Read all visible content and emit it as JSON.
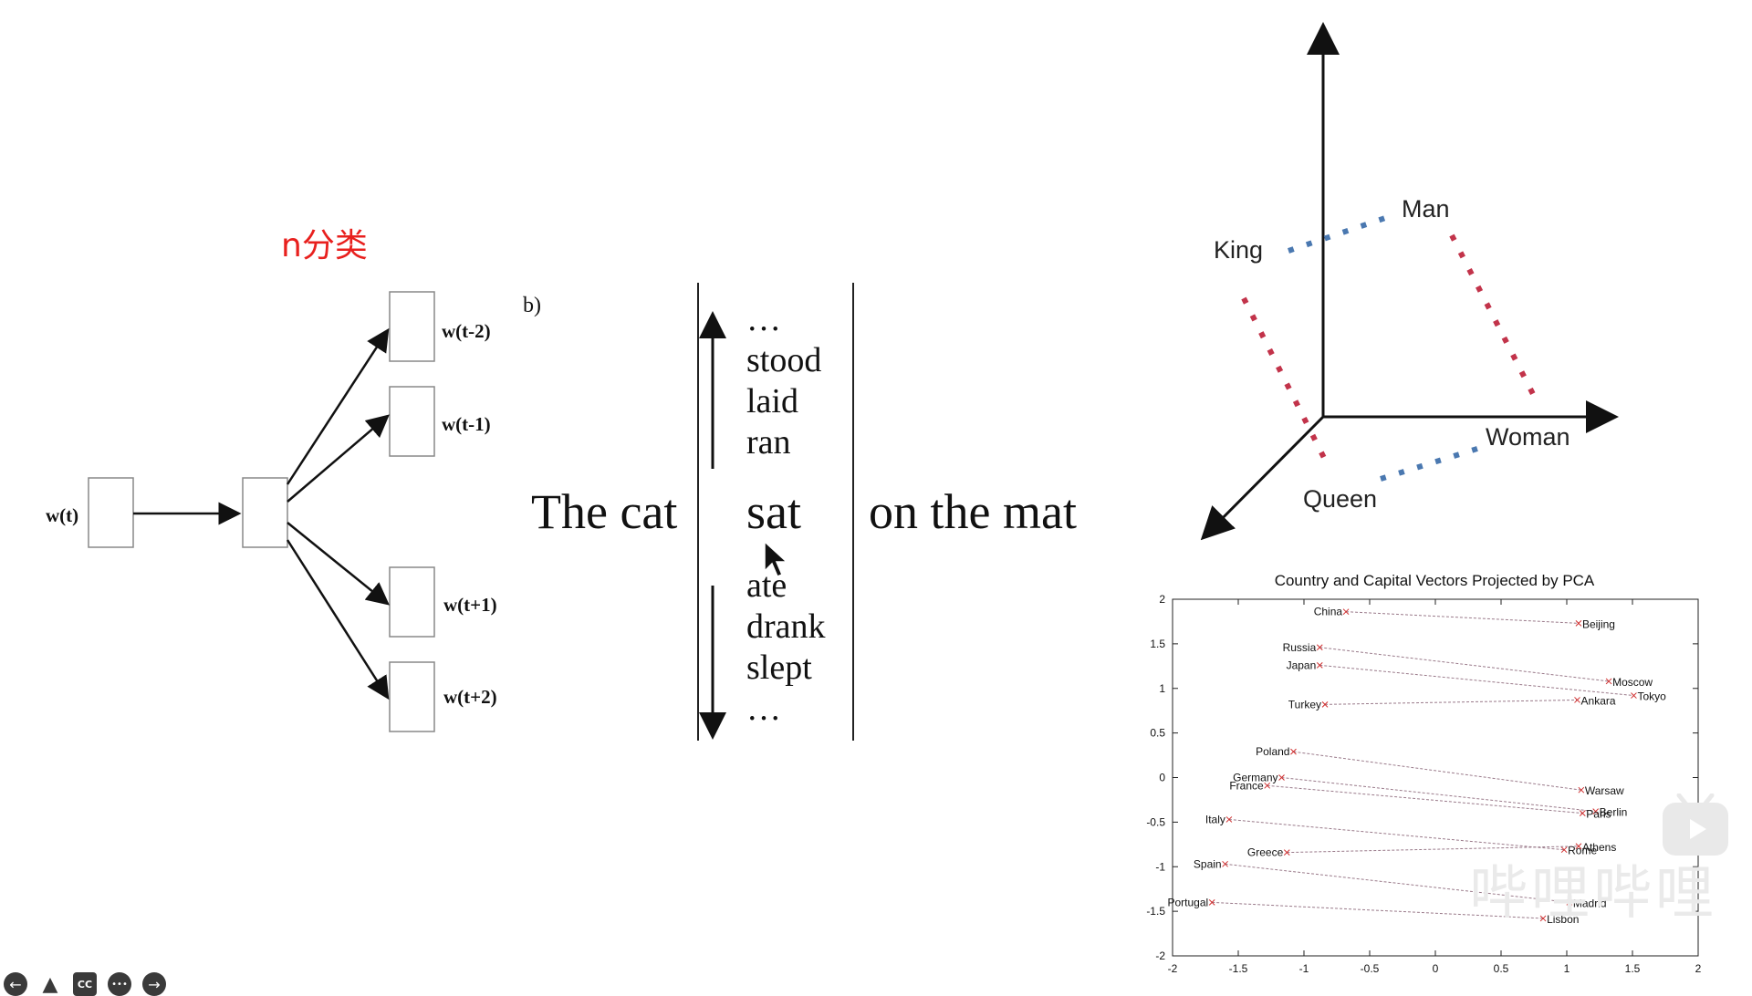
{
  "slide": {
    "annotation": "n分类"
  },
  "skipgram": {
    "input_label": "w(t)",
    "outputs": [
      "w(t-2)",
      "w(t-1)",
      "w(t+1)",
      "w(t+2)"
    ]
  },
  "context": {
    "panel_label": "b)",
    "left_phrase": "The cat",
    "center_word": "sat",
    "right_phrase": "on the mat",
    "above_words": [
      "…",
      "stood",
      "laid",
      "ran"
    ],
    "below_words": [
      "ate",
      "drank",
      "slept",
      "…"
    ]
  },
  "vectors": {
    "labels": {
      "man": "Man",
      "king": "King",
      "woman": "Woman",
      "queen": "Queen"
    },
    "colors": {
      "gender": "#c2334a",
      "royalty": "#4a78b0"
    }
  },
  "chart_data": {
    "type": "scatter",
    "title": "Country and Capital Vectors Projected by PCA",
    "xlim": [
      -2,
      2
    ],
    "ylim": [
      -2,
      2
    ],
    "xticks": [
      "-2",
      "-1.5",
      "-1",
      "-0.5",
      "0",
      "0.5",
      "1",
      "1.5",
      "2"
    ],
    "yticks": [
      "2",
      "1.5",
      "1",
      "0.5",
      "0",
      "-0.5",
      "-1",
      "-1.5",
      "-2"
    ],
    "grid": false,
    "pairs": [
      {
        "country": "China",
        "country_xy": [
          -0.68,
          1.86
        ],
        "capital": "Beijing",
        "capital_xy": [
          1.09,
          1.73
        ]
      },
      {
        "country": "Russia",
        "country_xy": [
          -0.88,
          1.46
        ],
        "capital": "Moscow",
        "capital_xy": [
          1.32,
          1.08
        ]
      },
      {
        "country": "Japan",
        "country_xy": [
          -0.88,
          1.26
        ],
        "capital": "Tokyo",
        "capital_xy": [
          1.51,
          0.92
        ]
      },
      {
        "country": "Turkey",
        "country_xy": [
          -0.84,
          0.82
        ],
        "capital": "Ankara",
        "capital_xy": [
          1.08,
          0.87
        ]
      },
      {
        "country": "Poland",
        "country_xy": [
          -1.08,
          0.29
        ],
        "capital": "Warsaw",
        "capital_xy": [
          1.11,
          -0.14
        ]
      },
      {
        "country": "Germany",
        "country_xy": [
          -1.17,
          0.0
        ],
        "capital": "Berlin",
        "capital_xy": [
          1.22,
          -0.38
        ]
      },
      {
        "country": "France",
        "country_xy": [
          -1.28,
          -0.09
        ],
        "capital": "Paris",
        "capital_xy": [
          1.12,
          -0.4
        ]
      },
      {
        "country": "Italy",
        "country_xy": [
          -1.57,
          -0.47
        ],
        "capital": "Rome",
        "capital_xy": [
          0.98,
          -0.81
        ]
      },
      {
        "country": "Greece",
        "country_xy": [
          -1.13,
          -0.84
        ],
        "capital": "Athens",
        "capital_xy": [
          1.09,
          -0.77
        ]
      },
      {
        "country": "Spain",
        "country_xy": [
          -1.6,
          -0.97
        ],
        "capital": "Madrid",
        "capital_xy": [
          1.02,
          -1.4
        ]
      },
      {
        "country": "Portugal",
        "country_xy": [
          -1.7,
          -1.4
        ],
        "capital": "Lisbon",
        "capital_xy": [
          0.82,
          -1.58
        ]
      }
    ]
  },
  "watermark": {
    "icon": "bilibili-tv-icon",
    "text": "哔哩哔哩"
  },
  "controls": {
    "icons": [
      "back-arrow-icon",
      "pen-icon",
      "captions-icon",
      "more-icon",
      "forward-arrow-icon"
    ],
    "cc_label": "CC",
    "more_glyph": "•••"
  }
}
